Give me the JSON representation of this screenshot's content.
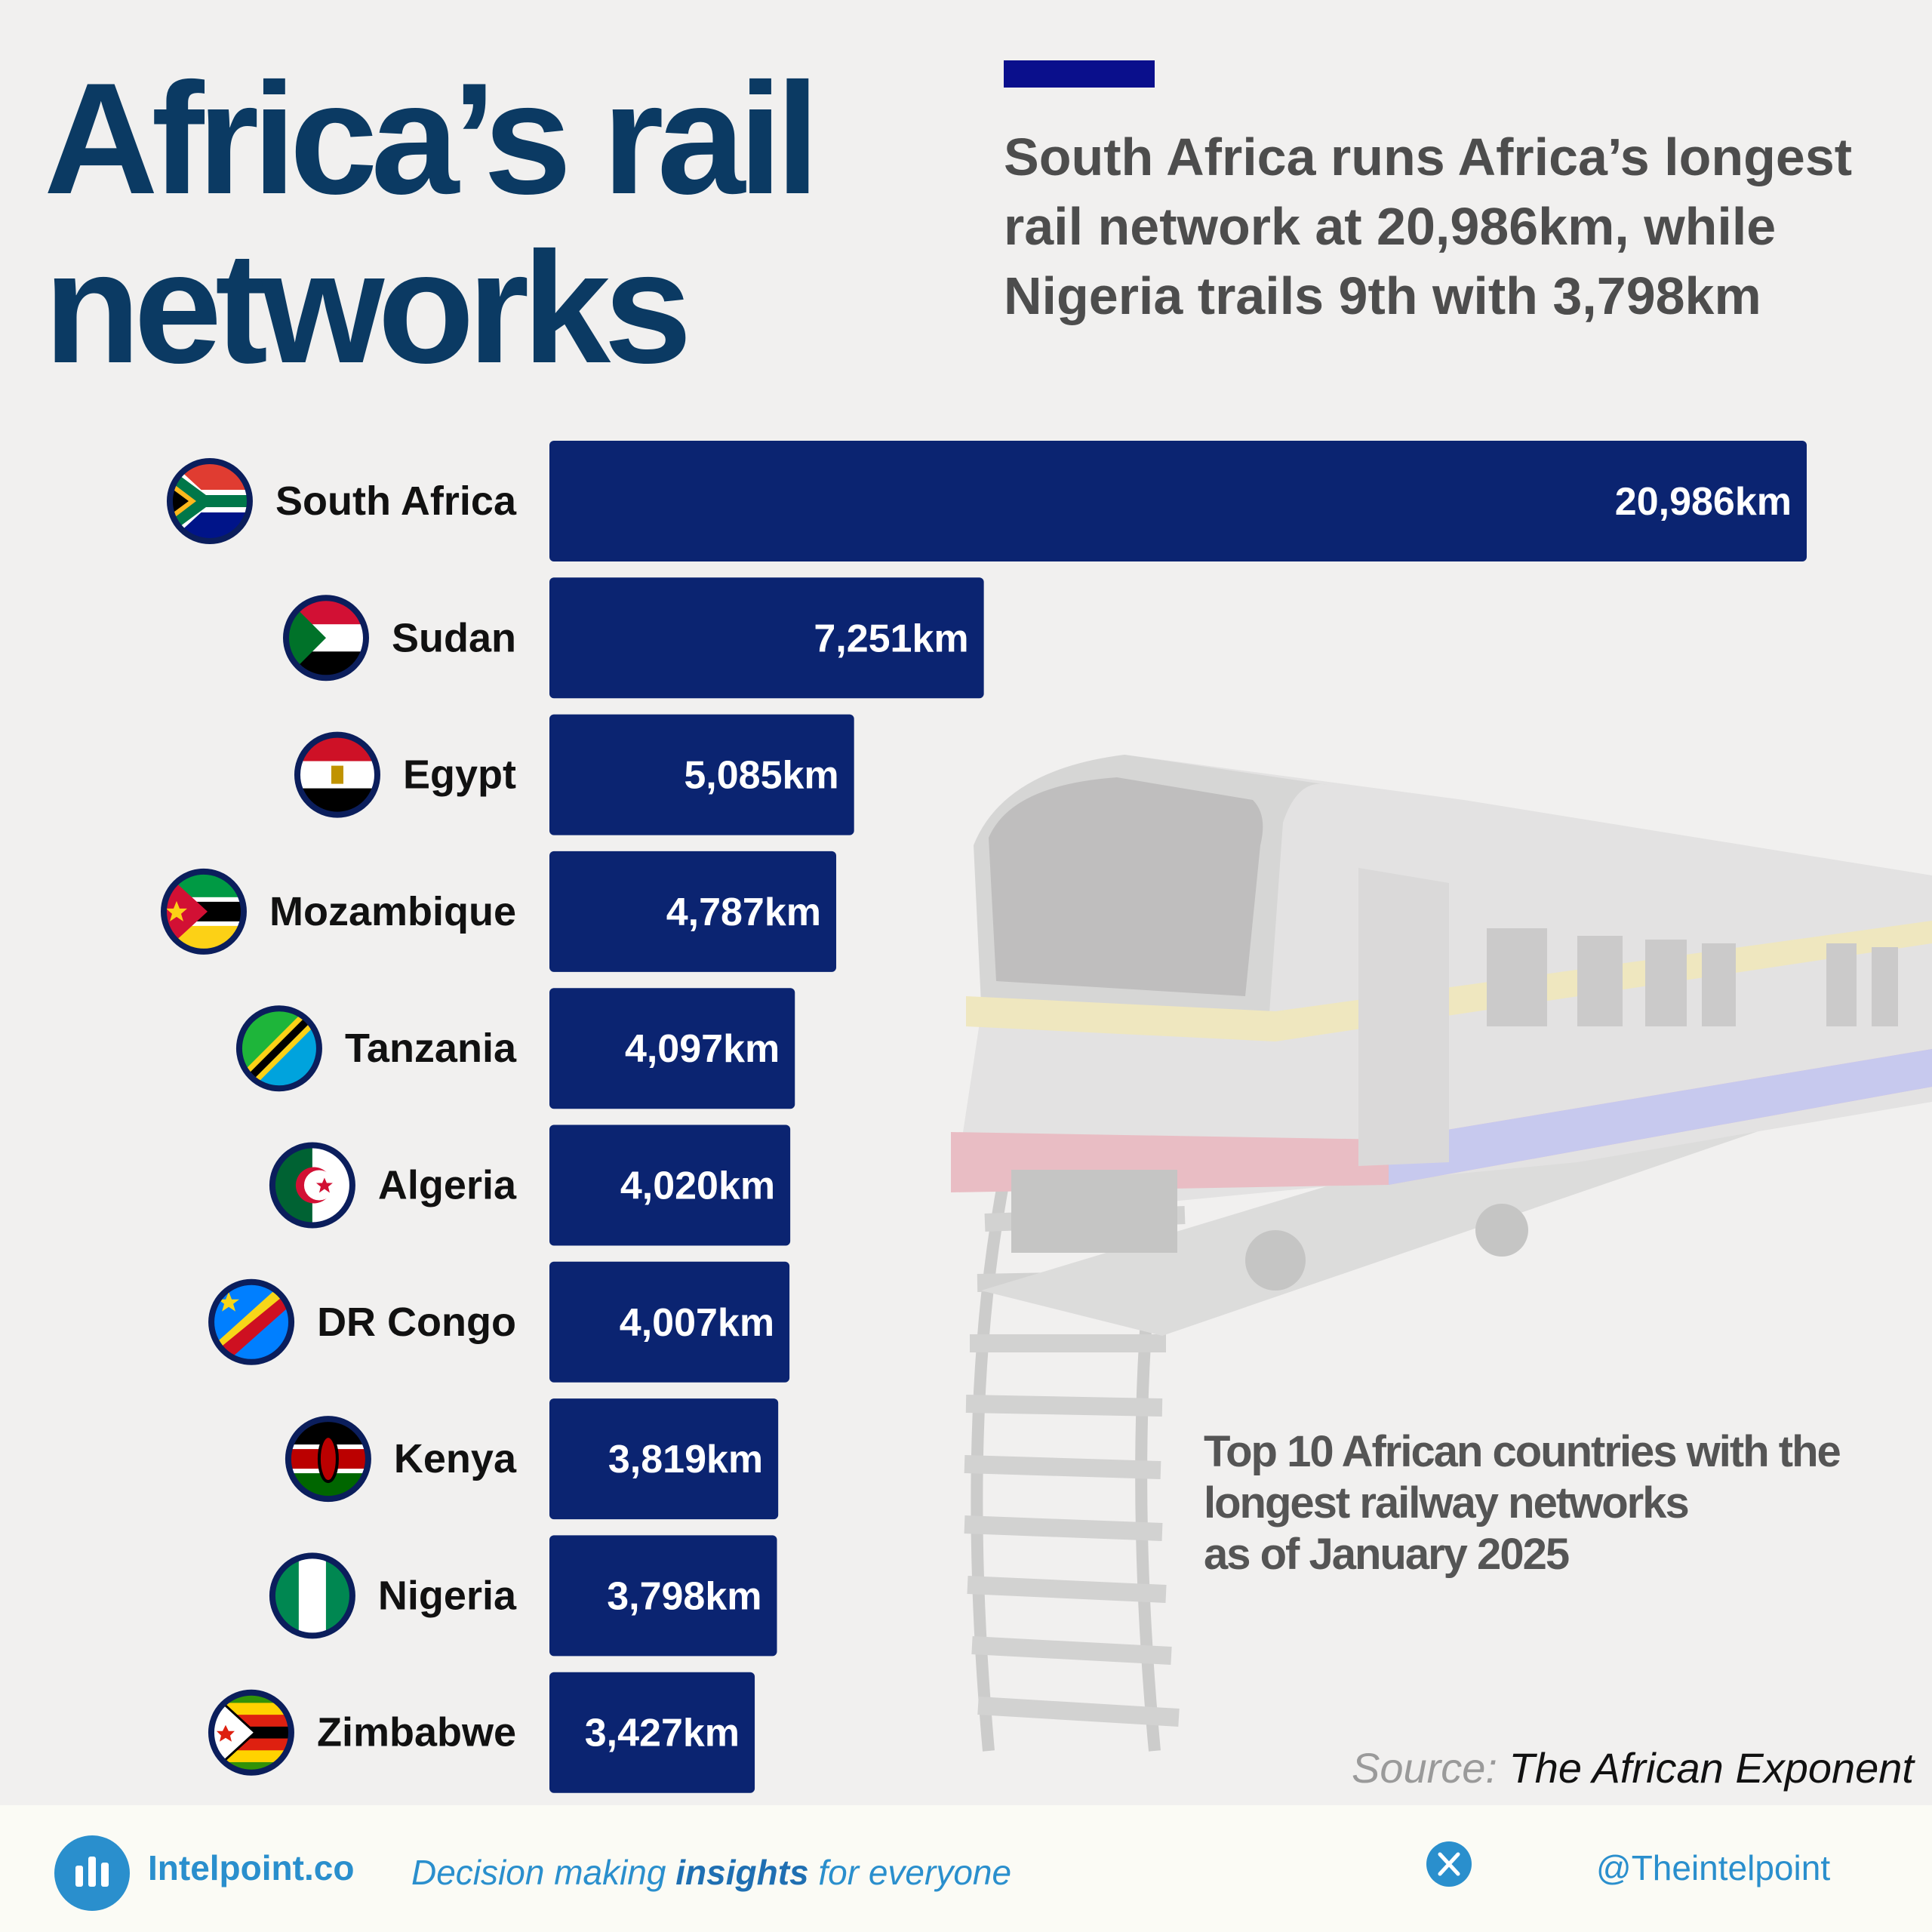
{
  "header": {
    "title_line1": "Africa’s rail",
    "title_line2": "networks",
    "subtitle": "South Africa runs Africa’s longest rail network at 20,986km, while Nigeria trails 9th with 3,798km",
    "accent_color": "#0a0f8c"
  },
  "chart_data": {
    "type": "bar",
    "orientation": "horizontal",
    "title": "Top 10 African countries with the longest railway networks as of January 2025",
    "categories": [
      "South Africa",
      "Sudan",
      "Egypt",
      "Mozambique",
      "Tanzania",
      "Algeria",
      "DR Congo",
      "Kenya",
      "Nigeria",
      "Zimbabwe"
    ],
    "values": [
      20986,
      7251,
      5085,
      4787,
      4097,
      4020,
      4007,
      3819,
      3798,
      3427
    ],
    "value_labels": [
      "20,986km",
      "7,251km",
      "5,085km",
      "4,787km",
      "4,097km",
      "4,020km",
      "4,007km",
      "3,819km",
      "3,798km",
      "3,427km"
    ],
    "unit": "km",
    "bar_color": "#0b2471",
    "xlim": [
      0,
      20986
    ],
    "grid": false,
    "legend": "none"
  },
  "note": {
    "line1": "Top 10 African countries with the",
    "line2": "longest railway networks",
    "line3": "as of January 2025"
  },
  "source": {
    "label": "Source:",
    "name": "The African Exponent"
  },
  "footer": {
    "brand": "Intelpoint.co",
    "tagline_pre": "Decision making",
    "tagline_bold": "insights",
    "tagline_post": "for everyone",
    "handle": "@Theintelpoint",
    "logo_icon": "bar-chart-icon",
    "social_icon": "x-logo-icon",
    "brand_color": "#2a8fcd"
  }
}
